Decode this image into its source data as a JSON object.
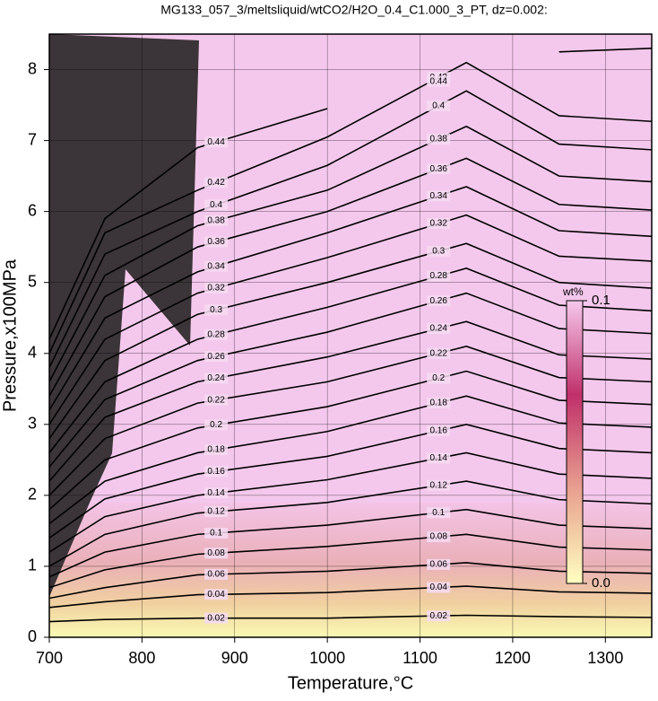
{
  "chart_data": {
    "type": "contour",
    "title": "MG133_057_3/meltsliquid/wtCO2/H2O_0.4_C1.000_3_PT, dz=0.002:",
    "xlabel": "Temperature,°C",
    "ylabel": "Pressure,x100MPa",
    "xlim": [
      700,
      1350
    ],
    "ylim": [
      0,
      8.5
    ],
    "xticks": [
      700,
      800,
      900,
      1000,
      1100,
      1200,
      1300
    ],
    "yticks": [
      0,
      1,
      2,
      3,
      4,
      5,
      6,
      7,
      8
    ],
    "grid": true,
    "x": [
      700,
      760,
      860,
      1000,
      1150,
      1250,
      1350
    ],
    "series": [
      {
        "level": 0.02,
        "values": [
          0.22,
          0.25,
          0.27,
          0.27,
          0.31,
          0.29,
          0.28
        ]
      },
      {
        "level": 0.04,
        "values": [
          0.42,
          0.5,
          0.6,
          0.63,
          0.72,
          0.64,
          0.62
        ]
      },
      {
        "level": 0.06,
        "values": [
          0.55,
          0.7,
          0.88,
          0.93,
          1.05,
          0.93,
          0.9
        ]
      },
      {
        "level": 0.08,
        "values": [
          0.7,
          0.95,
          1.17,
          1.28,
          1.45,
          1.27,
          1.23
        ]
      },
      {
        "level": 0.1,
        "values": [
          0.85,
          1.2,
          1.45,
          1.58,
          1.8,
          1.58,
          1.53
        ]
      },
      {
        "level": 0.12,
        "values": [
          1.0,
          1.45,
          1.75,
          1.9,
          2.2,
          1.94,
          1.88
        ]
      },
      {
        "level": 0.14,
        "values": [
          1.2,
          1.7,
          2.0,
          2.22,
          2.6,
          2.3,
          2.24
        ]
      },
      {
        "level": 0.16,
        "values": [
          1.4,
          1.95,
          2.3,
          2.55,
          3.0,
          2.66,
          2.6
        ]
      },
      {
        "level": 0.18,
        "values": [
          1.6,
          2.2,
          2.6,
          2.9,
          3.4,
          3.02,
          2.96
        ]
      },
      {
        "level": 0.2,
        "values": [
          1.8,
          2.5,
          2.95,
          3.25,
          3.75,
          3.34,
          3.28
        ]
      },
      {
        "level": 0.22,
        "values": [
          2.0,
          2.8,
          3.3,
          3.6,
          4.1,
          3.66,
          3.6
        ]
      },
      {
        "level": 0.24,
        "values": [
          2.2,
          3.1,
          3.6,
          3.95,
          4.45,
          3.98,
          3.92
        ]
      },
      {
        "level": 0.26,
        "values": [
          2.4,
          3.35,
          3.9,
          4.3,
          4.85,
          4.35,
          4.28
        ]
      },
      {
        "level": 0.28,
        "values": [
          2.6,
          3.6,
          4.2,
          4.65,
          5.2,
          4.68,
          4.6
        ]
      },
      {
        "level": 0.3,
        "values": [
          2.8,
          3.9,
          4.55,
          5.0,
          5.55,
          5.0,
          4.92
        ]
      },
      {
        "level": 0.32,
        "values": [
          3.0,
          4.2,
          4.85,
          5.35,
          5.95,
          5.37,
          5.3
        ]
      },
      {
        "level": 0.34,
        "values": [
          3.2,
          4.5,
          5.15,
          5.7,
          6.35,
          5.73,
          5.65
        ]
      },
      {
        "level": 0.36,
        "values": [
          3.4,
          4.8,
          5.5,
          6.0,
          6.75,
          6.1,
          6.02
        ]
      },
      {
        "level": 0.38,
        "values": [
          3.6,
          5.1,
          5.8,
          6.3,
          7.2,
          6.5,
          6.42
        ]
      },
      {
        "level": 0.4,
        "values": [
          3.8,
          5.4,
          6.0,
          6.65,
          7.7,
          6.95,
          6.87
        ]
      },
      {
        "level": 0.42,
        "values": [
          4.0,
          5.7,
          6.3,
          7.05,
          8.1,
          7.35,
          7.27
        ]
      },
      {
        "level": 0.44,
        "values": [
          4.2,
          5.9,
          6.9,
          7.45,
          null,
          8.25,
          8.3
        ]
      }
    ],
    "colorbar": {
      "title": "wt%",
      "range": [
        0,
        0.1
      ],
      "ticks": [
        {
          "value": 0,
          "label": "0.0"
        },
        0.1
      ],
      "colors": [
        "#ffffc0",
        "#e8a090",
        "#c0306a",
        "#f5c8ec"
      ]
    }
  }
}
